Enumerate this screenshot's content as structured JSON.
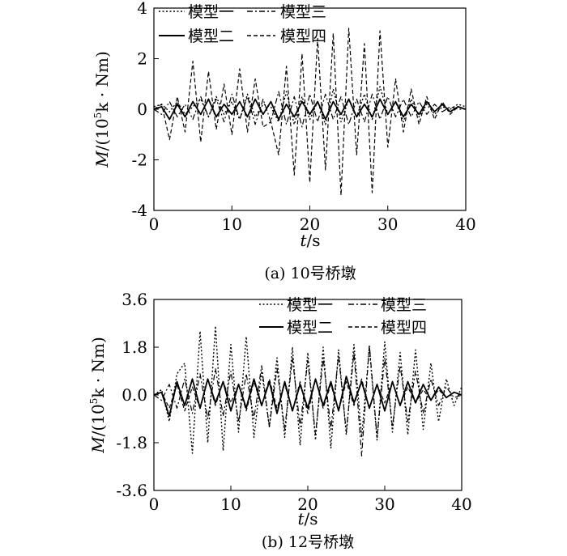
{
  "charts": [
    {
      "caption": "(a) 10号桥墩",
      "xlabel_var": "t",
      "xlabel_unit": "/s",
      "ylabel_var": "M",
      "ylabel_rest": "/(10",
      "ylabel_exp": "5",
      "ylabel_unit": "k · Nm)",
      "legend": [
        "模型一",
        "模型三",
        "模型二",
        "模型四"
      ]
    },
    {
      "caption": "(b) 12号桥墩",
      "xlabel_var": "t",
      "xlabel_unit": "/s",
      "ylabel_var": "M",
      "ylabel_rest": "/(10",
      "ylabel_exp": "5",
      "ylabel_unit": "k · Nm)",
      "legend": [
        "模型一",
        "模型三",
        "模型二",
        "模型四"
      ]
    }
  ],
  "chart_data": [
    {
      "type": "line",
      "caption": "(a) 10号桥墩",
      "xlabel": "t/s",
      "ylabel": "M/(10^5k · Nm)",
      "xlim": [
        0,
        40
      ],
      "ylim": [
        -4,
        4
      ],
      "xticks": [
        0,
        10,
        20,
        30,
        40
      ],
      "yticks": [
        -4,
        -2,
        0,
        2,
        4
      ],
      "legend_position": "top",
      "series": [
        {
          "name": "模型一",
          "style": "dotted",
          "x": [
            0,
            1,
            2,
            3,
            4,
            5,
            6,
            7,
            8,
            9,
            10,
            11,
            12,
            13,
            14,
            15,
            16,
            17,
            18,
            19,
            20,
            21,
            22,
            23,
            24,
            25,
            26,
            27,
            28,
            29,
            30,
            31,
            32,
            33,
            34,
            35,
            36,
            37,
            38,
            39,
            40
          ],
          "y": [
            0.1,
            0.2,
            -0.1,
            0.3,
            -0.2,
            0.1,
            0.4,
            -0.3,
            0.5,
            -0.2,
            0.3,
            -0.4,
            0.6,
            -0.3,
            0.2,
            0.1,
            -0.5,
            0.7,
            -0.6,
            0.5,
            -0.4,
            0.3,
            -0.6,
            0.8,
            -0.5,
            0.4,
            -0.3,
            0.6,
            -0.4,
            0.9,
            -0.2,
            0.3,
            -0.5,
            0.4,
            -0.3,
            0.2,
            -0.2,
            0.1,
            0.0,
            0.2,
            0.1
          ]
        },
        {
          "name": "模型三",
          "style": "dash-dot",
          "x": [
            0,
            1,
            2,
            3,
            4,
            5,
            6,
            7,
            8,
            9,
            10,
            11,
            12,
            13,
            14,
            15,
            16,
            17,
            18,
            19,
            20,
            21,
            22,
            23,
            24,
            25,
            26,
            27,
            28,
            29,
            30,
            31,
            32,
            33,
            34,
            35,
            36,
            37,
            38,
            39,
            40
          ],
          "y": [
            0.0,
            -0.2,
            0.3,
            -0.3,
            0.2,
            -0.4,
            0.5,
            -0.3,
            0.4,
            -0.5,
            0.6,
            -0.4,
            0.5,
            -0.6,
            0.4,
            -0.5,
            0.7,
            -0.6,
            0.5,
            -0.7,
            0.6,
            -0.5,
            0.6,
            -0.4,
            0.5,
            -0.6,
            0.4,
            -0.5,
            0.6,
            -0.4,
            0.5,
            -0.3,
            0.4,
            -0.3,
            0.3,
            -0.2,
            0.2,
            -0.1,
            0.1,
            0.0,
            0.0
          ]
        },
        {
          "name": "模型二",
          "style": "solid",
          "x": [
            0,
            1,
            2,
            3,
            4,
            5,
            6,
            7,
            8,
            9,
            10,
            11,
            12,
            13,
            14,
            15,
            16,
            17,
            18,
            19,
            20,
            21,
            22,
            23,
            24,
            25,
            26,
            27,
            28,
            29,
            30,
            31,
            32,
            33,
            34,
            35,
            36,
            37,
            38,
            39,
            40
          ],
          "y": [
            0.0,
            0.1,
            -0.4,
            0.2,
            -0.3,
            0.3,
            -0.2,
            0.4,
            -0.3,
            0.2,
            -0.2,
            0.3,
            -0.3,
            0.4,
            -0.2,
            0.3,
            -0.4,
            0.2,
            -0.3,
            0.3,
            -0.2,
            0.3,
            -0.4,
            0.3,
            -0.2,
            0.4,
            -0.3,
            0.2,
            -0.3,
            0.4,
            -0.2,
            0.3,
            -0.3,
            0.2,
            -0.2,
            0.3,
            -0.1,
            0.2,
            -0.1,
            0.1,
            0.0
          ]
        },
        {
          "name": "模型四",
          "style": "dashed",
          "x": [
            0,
            1,
            2,
            3,
            4,
            5,
            6,
            7,
            8,
            9,
            10,
            11,
            12,
            13,
            14,
            15,
            16,
            17,
            18,
            19,
            20,
            21,
            22,
            23,
            24,
            25,
            26,
            27,
            28,
            29,
            30,
            31,
            32,
            33,
            34,
            35,
            36,
            37,
            38,
            39,
            40
          ],
          "y": [
            0.0,
            0.2,
            -1.2,
            0.5,
            -0.9,
            1.9,
            -1.3,
            1.5,
            -0.8,
            1.0,
            -1.0,
            1.6,
            -0.9,
            1.2,
            -0.7,
            -0.5,
            -1.8,
            1.7,
            -2.6,
            2.2,
            -2.9,
            2.8,
            -2.4,
            3.0,
            -3.4,
            3.2,
            -1.8,
            2.6,
            -3.3,
            3.1,
            -1.5,
            1.2,
            -0.9,
            0.8,
            -0.6,
            0.5,
            -0.4,
            0.3,
            -0.2,
            0.1,
            0.0
          ]
        }
      ]
    },
    {
      "type": "line",
      "caption": "(b) 12号桥墩",
      "xlabel": "t/s",
      "ylabel": "M/(10^5k · Nm)",
      "xlim": [
        0,
        40
      ],
      "ylim": [
        -3.6,
        3.6
      ],
      "xticks": [
        0,
        10,
        20,
        30,
        40
      ],
      "yticks": [
        -3.6,
        -1.8,
        0.0,
        1.8,
        3.6
      ],
      "legend_position": "top",
      "series": [
        {
          "name": "模型一",
          "style": "dotted",
          "x": [
            0,
            1,
            2,
            3,
            4,
            5,
            6,
            7,
            8,
            9,
            10,
            11,
            12,
            13,
            14,
            15,
            16,
            17,
            18,
            19,
            20,
            21,
            22,
            23,
            24,
            25,
            26,
            27,
            28,
            29,
            30,
            31,
            32,
            33,
            34,
            35,
            36,
            37,
            38,
            39,
            40
          ],
          "y": [
            0.0,
            0.2,
            -1.0,
            0.8,
            1.2,
            -2.2,
            2.4,
            -1.8,
            2.6,
            -2.1,
            1.9,
            -1.4,
            2.2,
            -1.6,
            0.9,
            -1.2,
            1.4,
            -1.6,
            1.8,
            -1.9,
            1.6,
            -1.7,
            1.8,
            -2.0,
            1.7,
            -1.5,
            1.9,
            -1.6,
            1.8,
            -1.7,
            2.0,
            -1.4,
            1.6,
            -1.5,
            1.7,
            -1.3,
            1.2,
            -1.0,
            0.6,
            -0.4,
            0.3
          ]
        },
        {
          "name": "模型三",
          "style": "dash-dot",
          "x": [
            0,
            1,
            2,
            3,
            4,
            5,
            6,
            7,
            8,
            9,
            10,
            11,
            12,
            13,
            14,
            15,
            16,
            17,
            18,
            19,
            20,
            21,
            22,
            23,
            24,
            25,
            26,
            27,
            28,
            29,
            30,
            31,
            32,
            33,
            34,
            35,
            36,
            37,
            38,
            39,
            40
          ],
          "y": [
            0.0,
            -0.2,
            0.4,
            -0.5,
            0.6,
            -0.7,
            0.8,
            -0.9,
            1.0,
            -0.8,
            0.9,
            -1.0,
            0.8,
            -0.9,
            1.1,
            -1.2,
            1.0,
            -1.3,
            1.4,
            -1.2,
            1.3,
            -1.5,
            1.4,
            -1.3,
            1.5,
            -1.4,
            1.6,
            -2.3,
            1.9,
            -1.6,
            1.4,
            -1.2,
            1.1,
            -1.0,
            0.9,
            -0.7,
            0.6,
            -0.4,
            0.3,
            -0.1,
            0.0
          ]
        },
        {
          "name": "模型二",
          "style": "solid",
          "x": [
            0,
            1,
            2,
            3,
            4,
            5,
            6,
            7,
            8,
            9,
            10,
            11,
            12,
            13,
            14,
            15,
            16,
            17,
            18,
            19,
            20,
            21,
            22,
            23,
            24,
            25,
            26,
            27,
            28,
            29,
            30,
            31,
            32,
            33,
            34,
            35,
            36,
            37,
            38,
            39,
            40
          ],
          "y": [
            0.0,
            0.1,
            -0.8,
            0.5,
            -0.4,
            0.6,
            -0.5,
            0.6,
            -0.3,
            0.5,
            -0.6,
            0.4,
            -0.5,
            0.6,
            -0.4,
            0.5,
            -0.7,
            0.5,
            -0.6,
            0.4,
            -0.5,
            0.6,
            -0.4,
            0.5,
            -0.6,
            0.7,
            -0.3,
            0.5,
            -0.5,
            0.4,
            -0.6,
            0.5,
            -0.4,
            0.5,
            -0.3,
            0.4,
            -0.2,
            0.3,
            -0.1,
            0.1,
            0.0
          ]
        },
        {
          "name": "模型四",
          "style": "dashed",
          "x": [
            0,
            1,
            2,
            3,
            4,
            5,
            6,
            7,
            8,
            9,
            10,
            11,
            12,
            13,
            14,
            15,
            16,
            17,
            18,
            19,
            20,
            21,
            22,
            23,
            24,
            25,
            26,
            27,
            28,
            29,
            30,
            31,
            32,
            33,
            34,
            35,
            36,
            37,
            38,
            39,
            40
          ],
          "y": [
            0.0,
            0.1,
            -0.5,
            0.4,
            -0.6,
            0.3,
            -0.5,
            0.6,
            -0.4,
            0.5,
            -0.3,
            0.4,
            -0.6,
            0.5,
            -0.4,
            0.6,
            -0.5,
            0.4,
            -0.6,
            0.5,
            -0.7,
            0.6,
            -0.5,
            0.4,
            -0.6,
            0.5,
            -0.4,
            0.6,
            -0.5,
            0.4,
            -0.3,
            0.5,
            -0.4,
            0.3,
            -0.3,
            0.2,
            -0.2,
            0.2,
            -0.1,
            0.1,
            0.0
          ]
        }
      ]
    }
  ]
}
